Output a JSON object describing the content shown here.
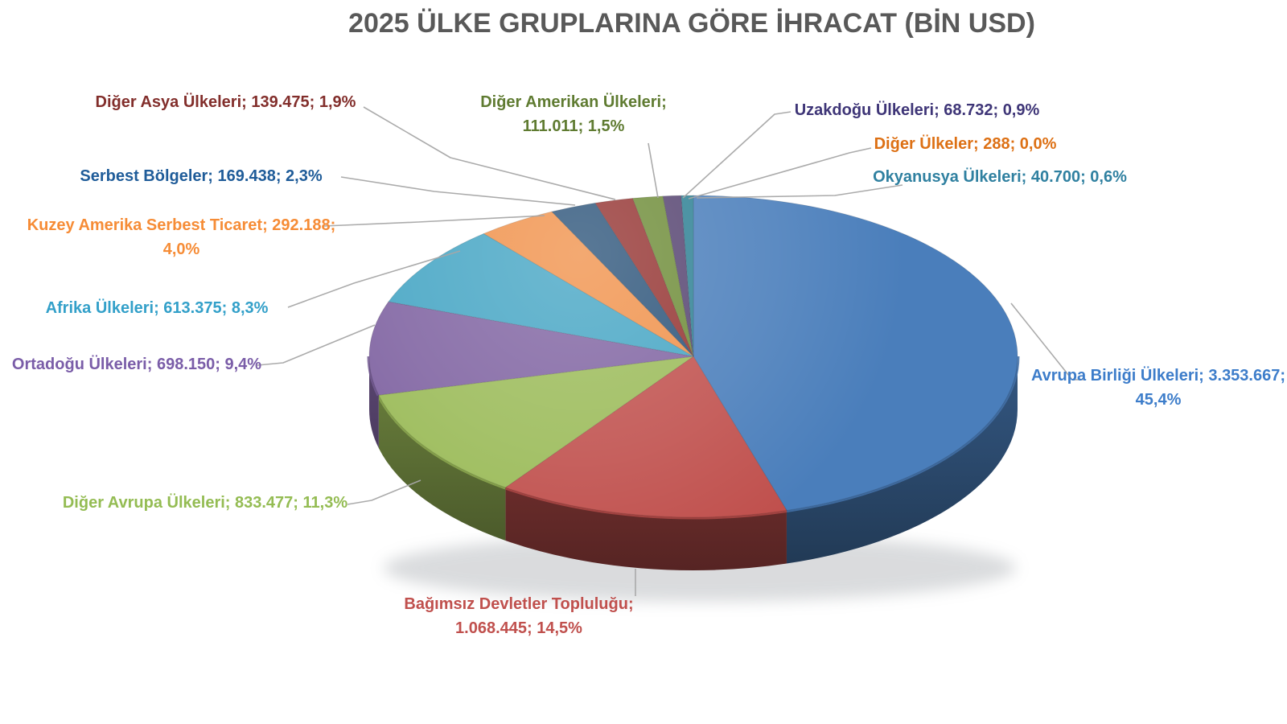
{
  "title": "2025 ÜLKE GRUPLARINA GÖRE İHRACAT (BİN USD)",
  "title_color": "#595959",
  "chart_data": {
    "type": "pie",
    "is_3d": true,
    "title": "2025 ÜLKE GRUPLARINA GÖRE İHRACAT (BİN USD)",
    "unit": "BİN USD",
    "legend_position": "none",
    "labels_style": "name; value; percent with gray leader lines",
    "start_angle_deg": 0,
    "direction": "clockwise",
    "leader_line_color": "#A6A6A6",
    "slices": [
      {
        "slug": "avrupa-birligi",
        "name": "Avrupa Birliği Ülkeleri",
        "value": "3.353.667",
        "value_num": 3353667,
        "percent": "45,4%",
        "pct_num": 45.4,
        "color": "#4A7EBB",
        "label_color": "#3D7DCA",
        "label": "Avrupa Birliği Ülkeleri; 3.353.667; 45,4%"
      },
      {
        "slug": "bagimsiz-devletler",
        "name": "Bağımsız Devletler Topluluğu",
        "value": "1.068.445",
        "value_num": 1068445,
        "percent": "14,5%",
        "pct_num": 14.5,
        "color": "#C0504D",
        "label_color": "#C0504D",
        "label": "Bağımsız Devletler Topluluğu; 1.068.445; 14,5%"
      },
      {
        "slug": "diger-avrupa",
        "name": "Diğer Avrupa Ülkeleri",
        "value": "833.477",
        "value_num": 833477,
        "percent": "11,3%",
        "pct_num": 11.3,
        "color": "#9BBB59",
        "label_color": "#94BC53",
        "label": "Diğer Avrupa Ülkeleri; 833.477; 11,3%"
      },
      {
        "slug": "ortadogu",
        "name": "Ortadoğu Ülkeleri",
        "value": "698.150",
        "value_num": 698150,
        "percent": "9,4%",
        "pct_num": 9.4,
        "color": "#8064A2",
        "label_color": "#7A5DA8",
        "label": "Ortadoğu Ülkeleri; 698.150; 9,4%"
      },
      {
        "slug": "afrika",
        "name": "Afrika Ülkeleri",
        "value": "613.375",
        "value_num": 613375,
        "percent": "8,3%",
        "pct_num": 8.3,
        "color": "#45A5C4",
        "label_color": "#33A0C9",
        "label": "Afrika Ülkeleri; 613.375; 8,3%"
      },
      {
        "slug": "kuzey-amerika-serbest-ticaret",
        "name": "Kuzey Amerika Serbest Ticaret",
        "value": "292.188",
        "value_num": 292188,
        "percent": "4,0%",
        "pct_num": 4.0,
        "color": "#F0914A",
        "label_color": "#F68C36",
        "label": "Kuzey Amerika Serbest Ticaret; 292.188; 4,0%"
      },
      {
        "slug": "serbest-bolgeler",
        "name": "Serbest Bölgeler",
        "value": "169.438",
        "value_num": 169438,
        "percent": "2,3%",
        "pct_num": 2.3,
        "color": "#2B5379",
        "label_color": "#1F5C99",
        "label": "Serbest Bölgeler; 169.438; 2,3%"
      },
      {
        "slug": "diger-asya",
        "name": "Diğer Asya Ülkeleri",
        "value": "139.475",
        "value_num": 139475,
        "percent": "1,9%",
        "pct_num": 1.9,
        "color": "#943331",
        "label_color": "#822E2B",
        "label": "Diğer Asya Ülkeleri; 139.475; 1,9%"
      },
      {
        "slug": "diger-amerikan",
        "name": "Diğer Amerikan Ülkeleri",
        "value": "111.011",
        "value_num": 111011,
        "percent": "1,5%",
        "pct_num": 1.5,
        "color": "#6E8C38",
        "label_color": "#5F7B31",
        "label": "Diğer Amerikan Ülkeleri; 111.011; 1,5%"
      },
      {
        "slug": "uzakdogu",
        "name": "Uzakdoğu Ülkeleri",
        "value": "68.732",
        "value_num": 68732,
        "percent": "0,9%",
        "pct_num": 0.9,
        "color": "#554370",
        "label_color": "#3E3577",
        "label": "Uzakdoğu Ülkeleri; 68.732; 0,9%"
      },
      {
        "slug": "diger-ulkeler",
        "name": "Diğer Ülkeler",
        "value": "288",
        "value_num": 288,
        "percent": "0,0%",
        "pct_num": 0.0,
        "color": "#C96A1B",
        "label_color": "#DD7014",
        "label": "Diğer Ülkeler; 288; 0,0%"
      },
      {
        "slug": "okyanusya",
        "name": "Okyanusya Ülkeleri",
        "value": "40.700",
        "value_num": 40700,
        "percent": "0,6%",
        "pct_num": 0.6,
        "color": "#2E8194",
        "label_color": "#2F80A0",
        "label": "Okyanusya Ülkeleri; 40.700; 0,6%"
      }
    ]
  }
}
